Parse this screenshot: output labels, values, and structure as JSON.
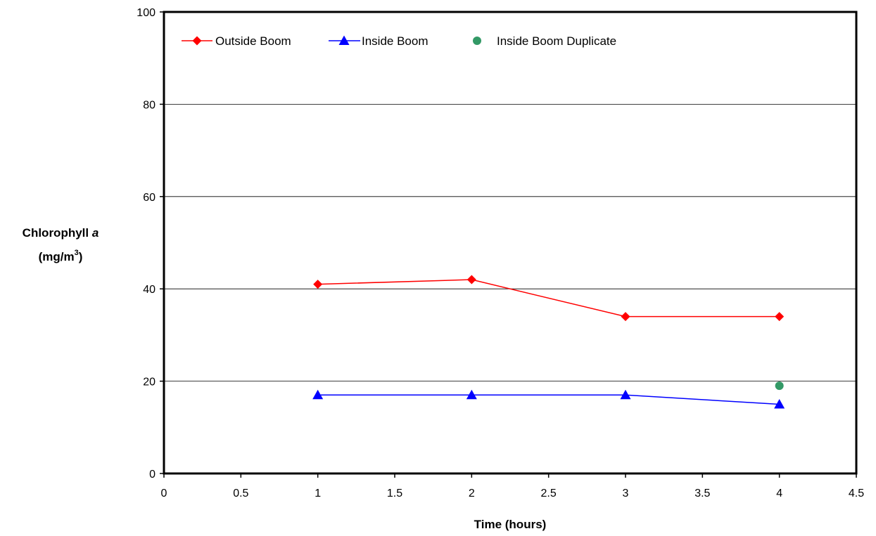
{
  "chart_data": {
    "type": "line",
    "title": "",
    "xlabel": "Time (hours)",
    "ylabel": {
      "main": "Chlorophyll ",
      "italic": "a",
      "unit_open": "(mg/m",
      "unit_sup": "3",
      "unit_close": ")"
    },
    "xlim": [
      0,
      4.5
    ],
    "ylim": [
      0,
      100
    ],
    "x_ticks": [
      0,
      0.5,
      1,
      1.5,
      2,
      2.5,
      3,
      3.5,
      4,
      4.5
    ],
    "x_tick_labels": [
      "0",
      "0.5",
      "1",
      "1.5",
      "2",
      "2.5",
      "3",
      "3.5",
      "4",
      "4.5"
    ],
    "y_ticks": [
      0,
      20,
      40,
      60,
      80,
      100
    ],
    "y_tick_labels": [
      "0",
      "20",
      "40",
      "60",
      "80",
      "100"
    ],
    "grid": "horizontal",
    "legend_position": "top-left",
    "series": [
      {
        "name": "Outside Boom",
        "color": "#ff0000",
        "marker": "diamond",
        "line": true,
        "x": [
          1,
          2,
          3,
          4
        ],
        "y": [
          41,
          42,
          34,
          34
        ]
      },
      {
        "name": "Inside Boom",
        "color": "#0000ff",
        "marker": "triangle",
        "line": true,
        "x": [
          1,
          2,
          3,
          4
        ],
        "y": [
          17,
          17,
          17,
          15
        ]
      },
      {
        "name": "Inside Boom Duplicate",
        "color": "#339966",
        "marker": "circle",
        "line": false,
        "x": [
          4
        ],
        "y": [
          19
        ]
      }
    ]
  }
}
